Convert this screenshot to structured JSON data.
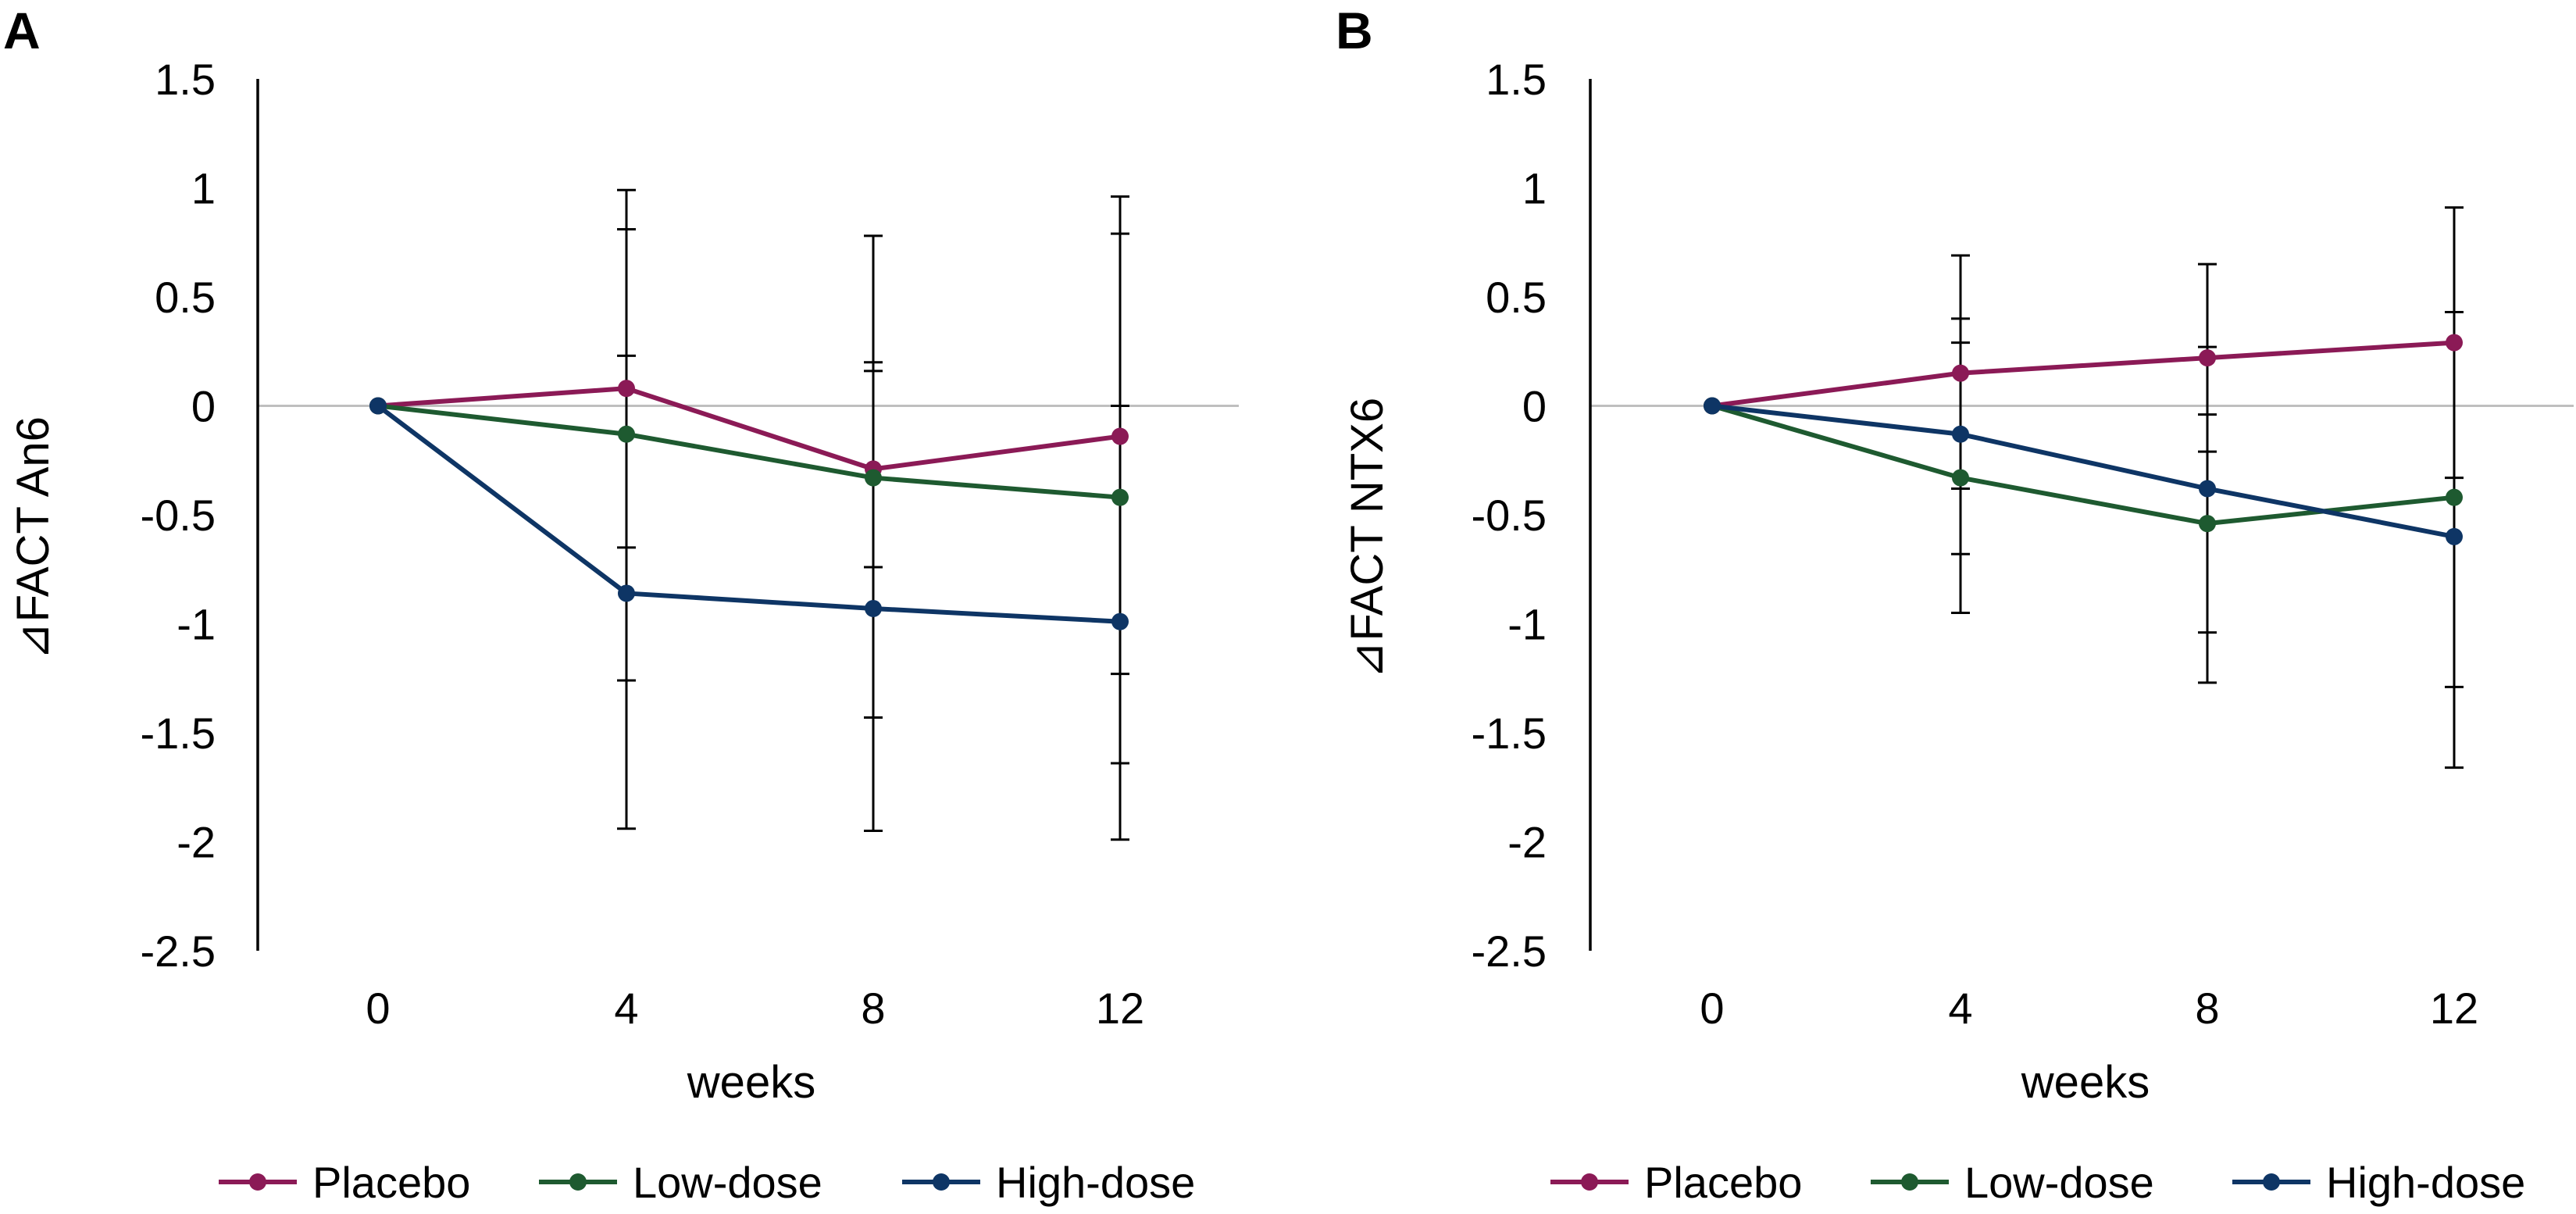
{
  "colors": {
    "placebo": "#8B1A56",
    "low_dose": "#1E5A30",
    "high_dose": "#0E3565",
    "zero_line": "#BFBFBF",
    "axis": "#000000"
  },
  "chart_data": [
    {
      "panel_label": "A",
      "type": "line",
      "xlabel": "weeks",
      "ylabel": "⊿FACT An6",
      "categories": [
        "0",
        "4",
        "8",
        "12"
      ],
      "ylim": [
        -2.5,
        1.5
      ],
      "yticks": [
        "1.5",
        "1",
        "0.5",
        "0",
        "-0.5",
        "-1",
        "-1.5",
        "-2",
        "-2.5"
      ],
      "legend_position": "bottom",
      "series": [
        {
          "name": "Placebo",
          "color_key": "placebo",
          "values": [
            0,
            0.08,
            -0.29,
            -0.14
          ],
          "error_low": [
            null,
            -0.65,
            -0.74,
            -1.23
          ],
          "error_high": [
            null,
            0.81,
            0.16,
            0.96
          ]
        },
        {
          "name": "Low-dose",
          "color_key": "low_dose",
          "values": [
            0,
            -0.13,
            -0.33,
            -0.42
          ],
          "error_low": [
            null,
            -1.26,
            -1.43,
            -1.64
          ],
          "error_high": [
            null,
            0.99,
            0.78,
            0.79
          ]
        },
        {
          "name": "High-dose",
          "color_key": "high_dose",
          "values": [
            0,
            -0.86,
            -0.93,
            -0.99
          ],
          "error_low": [
            null,
            -1.94,
            -1.95,
            -1.99
          ],
          "error_high": [
            null,
            0.23,
            0.2,
            0.0
          ]
        }
      ]
    },
    {
      "panel_label": "B",
      "type": "line",
      "xlabel": "weeks",
      "ylabel": "⊿FACT NTX6",
      "categories": [
        "0",
        "4",
        "8",
        "12"
      ],
      "ylim": [
        -2.5,
        1.5
      ],
      "yticks": [
        "1.5",
        "1",
        "0.5",
        "0",
        "-0.5",
        "-1",
        "-1.5",
        "-2",
        "-2.5"
      ],
      "legend_position": "bottom",
      "series": [
        {
          "name": "Placebo",
          "color_key": "placebo",
          "values": [
            0,
            0.15,
            0.22,
            0.29
          ],
          "error_low": [
            null,
            -0.38,
            -0.21,
            -0.33
          ],
          "error_high": [
            null,
            0.69,
            0.65,
            0.91
          ]
        },
        {
          "name": "Low-dose",
          "color_key": "low_dose",
          "values": [
            0,
            -0.33,
            -0.54,
            -0.42
          ],
          "error_low": [
            null,
            -0.95,
            -1.04,
            -1.29
          ],
          "error_high": [
            null,
            0.29,
            -0.04,
            0.43
          ]
        },
        {
          "name": "High-dose",
          "color_key": "high_dose",
          "values": [
            0,
            -0.13,
            -0.38,
            -0.6
          ],
          "error_low": [
            null,
            -0.68,
            -1.27,
            -1.66
          ],
          "error_high": [
            null,
            0.4,
            0.27,
            0.43
          ]
        }
      ]
    }
  ]
}
